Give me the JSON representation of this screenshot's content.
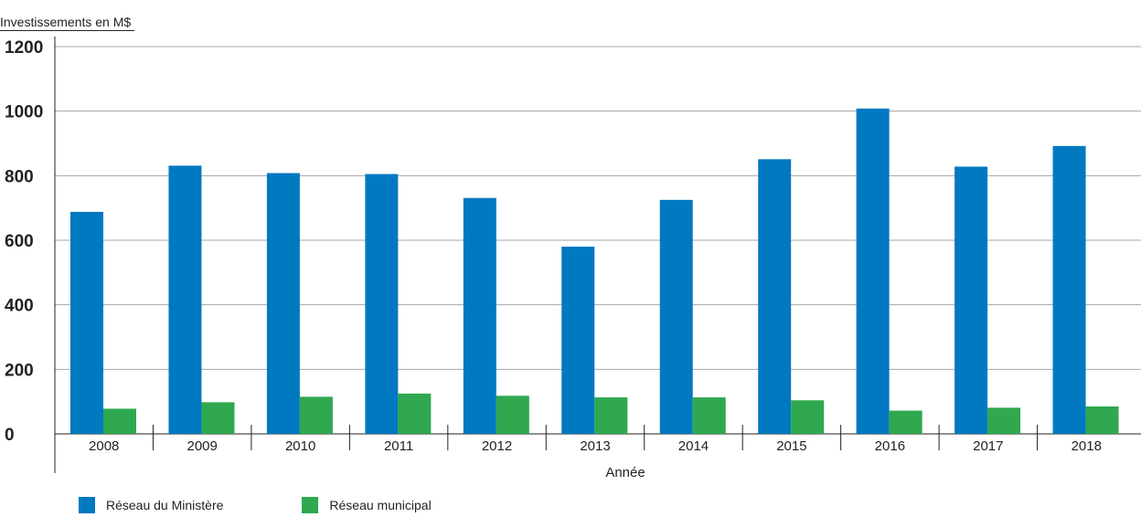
{
  "chart_data": {
    "type": "bar",
    "ylabel": "Investissements en M$",
    "xlabel": "Année",
    "categories": [
      "2008",
      "2009",
      "2010",
      "2011",
      "2012",
      "2013",
      "2014",
      "2015",
      "2016",
      "2017",
      "2018"
    ],
    "series": [
      {
        "name": "Réseau du Ministère",
        "color": "#0079c1",
        "values": [
          688,
          831,
          808,
          805,
          731,
          580,
          725,
          851,
          1008,
          828,
          892
        ]
      },
      {
        "name": "Réseau municipal",
        "color": "#2fa84f",
        "values": [
          78,
          98,
          115,
          125,
          118,
          113,
          113,
          104,
          72,
          81,
          85
        ]
      }
    ],
    "ylim": [
      0,
      1200
    ],
    "yticks": [
      0,
      200,
      400,
      600,
      800,
      1000,
      1200
    ],
    "grid": true,
    "legend_position": "bottom-left"
  }
}
